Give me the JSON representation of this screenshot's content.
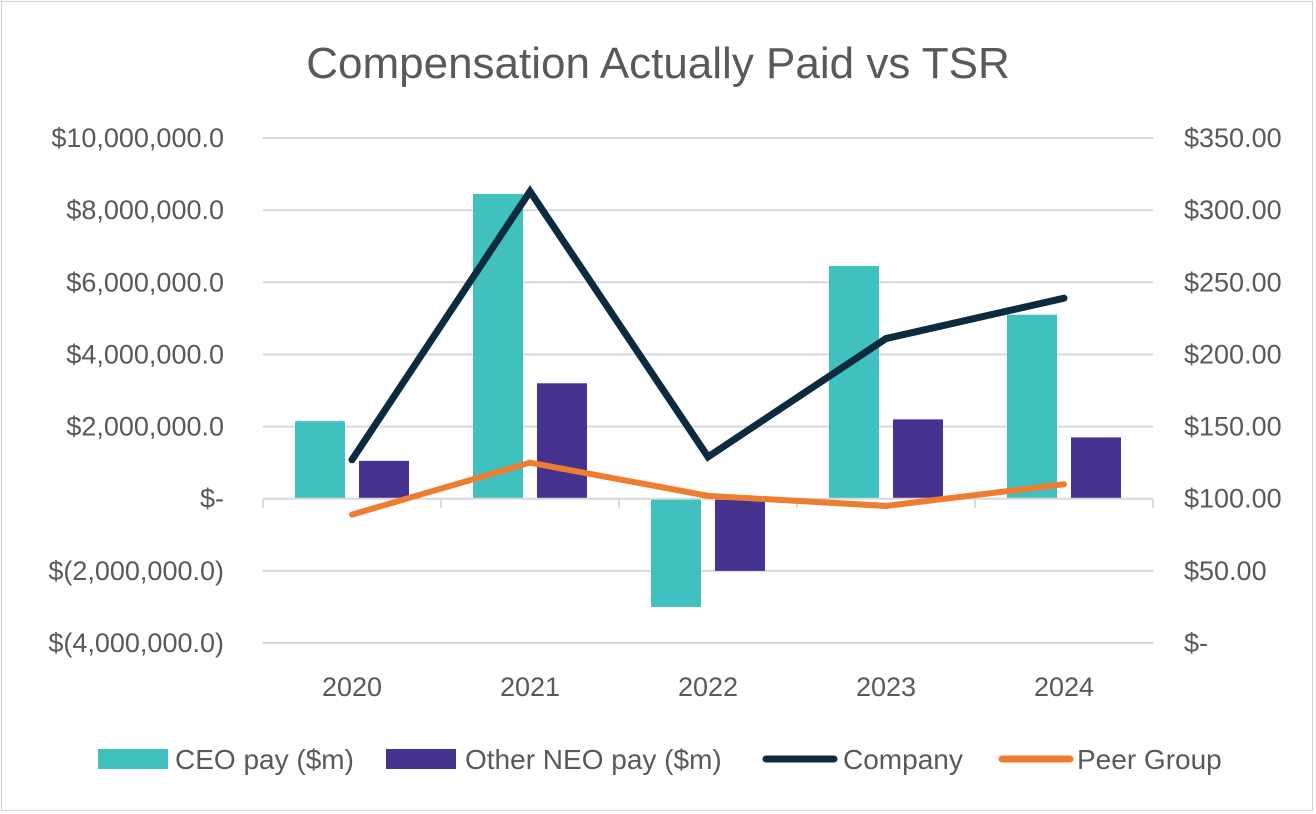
{
  "chart_data": {
    "type": "bar",
    "title": "Compensation Actually Paid vs TSR",
    "categories": [
      "2020",
      "2021",
      "2022",
      "2023",
      "2024"
    ],
    "left_axis": {
      "ylim": [
        -4000000,
        10000000
      ],
      "ticks": [
        10000000,
        8000000,
        6000000,
        4000000,
        2000000,
        0,
        -2000000,
        -4000000
      ],
      "tick_labels": [
        "$10,000,000.0",
        "$8,000,000.0",
        "$6,000,000.0",
        "$4,000,000.0",
        "$2,000,000.0",
        "$-",
        "$(2,000,000.0)",
        "$(4,000,000.0)"
      ]
    },
    "right_axis": {
      "ylim": [
        0,
        350
      ],
      "ticks": [
        350,
        300,
        250,
        200,
        150,
        100,
        50,
        0
      ],
      "tick_labels": [
        "$350.00",
        "$300.00",
        "$250.00",
        "$200.00",
        "$150.00",
        "$100.00",
        "$50.00",
        "$-"
      ]
    },
    "series": [
      {
        "name": "CEO pay ($m)",
        "type": "bar",
        "axis": "left",
        "color": "#40c1c0",
        "values": [
          2150000,
          8450000,
          -3000000,
          6450000,
          5100000
        ]
      },
      {
        "name": "Other NEO pay ($m)",
        "type": "bar",
        "axis": "left",
        "color": "#46328f",
        "values": [
          1050000,
          3200000,
          -2000000,
          2200000,
          1700000
        ]
      },
      {
        "name": "Company",
        "type": "line",
        "axis": "right",
        "color": "#0d2a3f",
        "values": [
          127,
          313,
          129,
          211,
          239
        ]
      },
      {
        "name": "Peer Group",
        "type": "line",
        "axis": "right",
        "color": "#ed7d31",
        "values": [
          89,
          125,
          102,
          95,
          110
        ]
      }
    ],
    "legend_position": "bottom",
    "grid": true
  }
}
